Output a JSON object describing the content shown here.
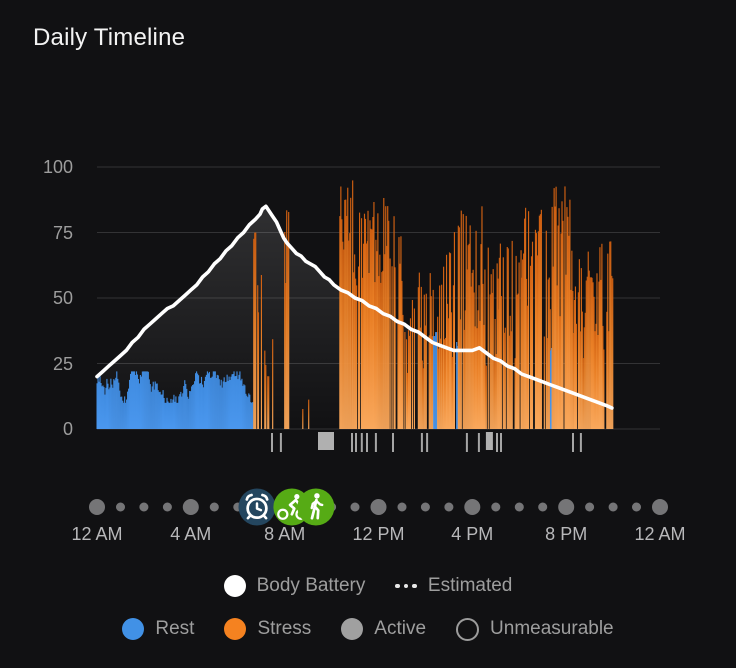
{
  "title": "Daily Timeline",
  "legend": {
    "body_battery": "Body Battery",
    "estimated": "Estimated",
    "rest": "Rest",
    "stress": "Stress",
    "active": "Active",
    "unmeasurable": "Unmeasurable"
  },
  "colors": {
    "background": "#111113",
    "rest_blue": "#4492e8",
    "stress_orange_top": "#cf5e10",
    "stress_orange_bottom": "#f9a85c",
    "body_battery_line": "#ffffff",
    "active_gray": "#a6a6a6",
    "gridline": "#333335",
    "axis_text": "#9d9d9d",
    "x_axis_text": "#b8b8ba",
    "legend_text": "#9e9e9e",
    "hour_dot": "#757577",
    "alarm_circle": "#24465f",
    "activity_circle": "#56ab15"
  },
  "chart_data": {
    "type": "line+bar",
    "title": "Daily Timeline",
    "x_axis": {
      "unit": "hours",
      "range": [
        0,
        24
      ],
      "ticks": [
        {
          "hour": 0,
          "label": "12 AM"
        },
        {
          "hour": 4,
          "label": "4 AM"
        },
        {
          "hour": 8,
          "label": "8 AM"
        },
        {
          "hour": 12,
          "label": "12 PM"
        },
        {
          "hour": 16,
          "label": "4 PM"
        },
        {
          "hour": 20,
          "label": "8 PM"
        },
        {
          "hour": 24,
          "label": "12 AM"
        }
      ]
    },
    "y_axis": {
      "range": [
        0,
        100
      ],
      "ticks": [
        0,
        25,
        50,
        75,
        100
      ],
      "grid": true
    },
    "body_battery_line": {
      "name": "Body Battery",
      "points": [
        [
          0,
          20
        ],
        [
          0.25,
          22
        ],
        [
          0.5,
          24
        ],
        [
          0.75,
          26
        ],
        [
          1,
          28
        ],
        [
          1.25,
          30
        ],
        [
          1.5,
          33
        ],
        [
          1.75,
          35
        ],
        [
          2,
          38
        ],
        [
          2.25,
          40
        ],
        [
          2.5,
          42
        ],
        [
          2.75,
          44
        ],
        [
          3,
          46
        ],
        [
          3.25,
          47
        ],
        [
          3.5,
          49
        ],
        [
          3.75,
          51
        ],
        [
          4,
          53
        ],
        [
          4.25,
          55
        ],
        [
          4.5,
          58
        ],
        [
          4.75,
          60
        ],
        [
          5,
          63
        ],
        [
          5.25,
          65
        ],
        [
          5.5,
          68
        ],
        [
          5.75,
          70
        ],
        [
          6,
          73
        ],
        [
          6.25,
          75
        ],
        [
          6.5,
          78
        ],
        [
          6.75,
          80
        ],
        [
          6.95,
          82
        ],
        [
          7.05,
          84
        ],
        [
          7.2,
          85
        ],
        [
          7.35,
          83
        ],
        [
          7.5,
          81
        ],
        [
          7.65,
          79
        ],
        [
          7.8,
          76
        ],
        [
          7.95,
          73
        ],
        [
          8.1,
          71
        ],
        [
          8.3,
          69
        ],
        [
          8.5,
          67
        ],
        [
          8.7,
          66
        ],
        [
          8.9,
          64
        ],
        [
          9.1,
          63
        ],
        [
          9.3,
          62
        ],
        [
          9.5,
          60
        ],
        [
          9.7,
          58
        ],
        [
          9.9,
          57
        ],
        [
          10.1,
          55
        ],
        [
          10.4,
          53
        ],
        [
          10.7,
          52
        ],
        [
          11,
          50
        ],
        [
          11.3,
          49
        ],
        [
          11.6,
          47
        ],
        [
          11.9,
          46
        ],
        [
          12.2,
          44
        ],
        [
          12.5,
          43
        ],
        [
          12.8,
          41
        ],
        [
          13.1,
          40
        ],
        [
          13.4,
          38
        ],
        [
          13.7,
          37
        ],
        [
          14,
          35
        ],
        [
          14.3,
          33
        ],
        [
          14.6,
          32
        ],
        [
          14.9,
          31
        ],
        [
          15.2,
          30
        ],
        [
          15.6,
          30
        ],
        [
          16,
          30
        ],
        [
          16.3,
          31
        ],
        [
          16.6,
          29
        ],
        [
          16.9,
          27
        ],
        [
          17.2,
          26
        ],
        [
          17.5,
          24
        ],
        [
          17.8,
          23
        ],
        [
          18.1,
          21
        ],
        [
          18.4,
          20
        ],
        [
          18.7,
          19
        ],
        [
          19,
          18
        ],
        [
          19.3,
          17
        ],
        [
          19.6,
          16
        ],
        [
          19.9,
          15
        ],
        [
          20.2,
          14
        ],
        [
          20.5,
          13
        ],
        [
          20.8,
          12
        ],
        [
          21.1,
          11
        ],
        [
          21.4,
          10
        ],
        [
          21.7,
          9
        ],
        [
          21.95,
          8
        ]
      ]
    },
    "bar_segments": [
      {
        "type": "rest",
        "start": 0,
        "end": 6.65,
        "min": 10,
        "max": 22,
        "density": 1
      },
      {
        "type": "stress",
        "start": 6.68,
        "end": 6.88,
        "min": 45,
        "max": 86,
        "density": 0.85
      },
      {
        "type": "stress",
        "start": 6.88,
        "end": 7.15,
        "min": 22,
        "max": 60,
        "density": 0.5
      },
      {
        "type": "stress",
        "start": 7.15,
        "end": 7.55,
        "min": 14,
        "max": 45,
        "density": 0.45
      },
      {
        "type": "stress",
        "start": 8.0,
        "end": 8.18,
        "min": 55,
        "max": 90,
        "density": 0.7
      },
      {
        "type": "stress",
        "start": 8.35,
        "end": 9.35,
        "min": 5,
        "max": 16,
        "density": 0.07
      },
      {
        "type": "stress",
        "start": 10.35,
        "end": 11.55,
        "min": 48,
        "max": 95,
        "density": 0.85
      },
      {
        "type": "stress",
        "start": 11.55,
        "end": 12.45,
        "min": 55,
        "max": 90,
        "density": 0.97
      },
      {
        "type": "stress",
        "start": 12.45,
        "end": 13.15,
        "min": 35,
        "max": 82,
        "density": 0.85
      },
      {
        "type": "stress",
        "start": 13.15,
        "end": 13.95,
        "min": 18,
        "max": 65,
        "density": 0.55
      },
      {
        "type": "stress",
        "start": 13.95,
        "end": 14.35,
        "min": 25,
        "max": 72,
        "density": 0.7
      },
      {
        "type": "rest",
        "start": 14.35,
        "end": 14.52,
        "min": 29,
        "max": 37,
        "density": 1
      },
      {
        "type": "stress",
        "start": 14.52,
        "end": 15.33,
        "min": 24,
        "max": 76,
        "density": 0.75
      },
      {
        "type": "rest",
        "start": 15.33,
        "end": 15.4,
        "min": 27,
        "max": 34,
        "density": 1
      },
      {
        "type": "stress",
        "start": 15.4,
        "end": 16.55,
        "min": 34,
        "max": 86,
        "density": 0.85
      },
      {
        "type": "stress",
        "start": 16.55,
        "end": 17.15,
        "min": 24,
        "max": 70,
        "density": 0.8
      },
      {
        "type": "stress",
        "start": 17.15,
        "end": 18.1,
        "min": 24,
        "max": 72,
        "density": 0.7
      },
      {
        "type": "stress",
        "start": 18.1,
        "end": 19.33,
        "min": 34,
        "max": 88,
        "density": 0.85
      },
      {
        "type": "rest",
        "start": 19.33,
        "end": 19.4,
        "min": 28,
        "max": 36,
        "density": 1
      },
      {
        "type": "stress",
        "start": 19.4,
        "end": 20.35,
        "min": 35,
        "max": 95,
        "density": 0.9
      },
      {
        "type": "stress",
        "start": 20.35,
        "end": 21.1,
        "min": 24,
        "max": 70,
        "density": 0.85
      },
      {
        "type": "stress",
        "start": 21.1,
        "end": 22.0,
        "min": 28,
        "max": 72,
        "density": 0.9
      }
    ],
    "active_markers": {
      "ticks": [
        7.46,
        7.84,
        10.87,
        11.04,
        11.29,
        11.51,
        11.89,
        12.62,
        13.85,
        14.07,
        15.77,
        16.28,
        17.05,
        17.22,
        20.29,
        20.63
      ],
      "blocks": [
        {
          "hour": 9.42,
          "duration": 0.68
        },
        {
          "hour": 16.58,
          "duration": 0.3
        }
      ]
    },
    "hour_dots": {
      "every_hours": 1,
      "major_every_hours": 4
    },
    "events": [
      {
        "hour": 6.82,
        "icon": "alarm",
        "label": "alarm"
      },
      {
        "hour": 8.31,
        "icon": "cycling",
        "label": "cycling activity"
      },
      {
        "hour": 9.33,
        "icon": "walking",
        "label": "walking activity"
      }
    ]
  }
}
